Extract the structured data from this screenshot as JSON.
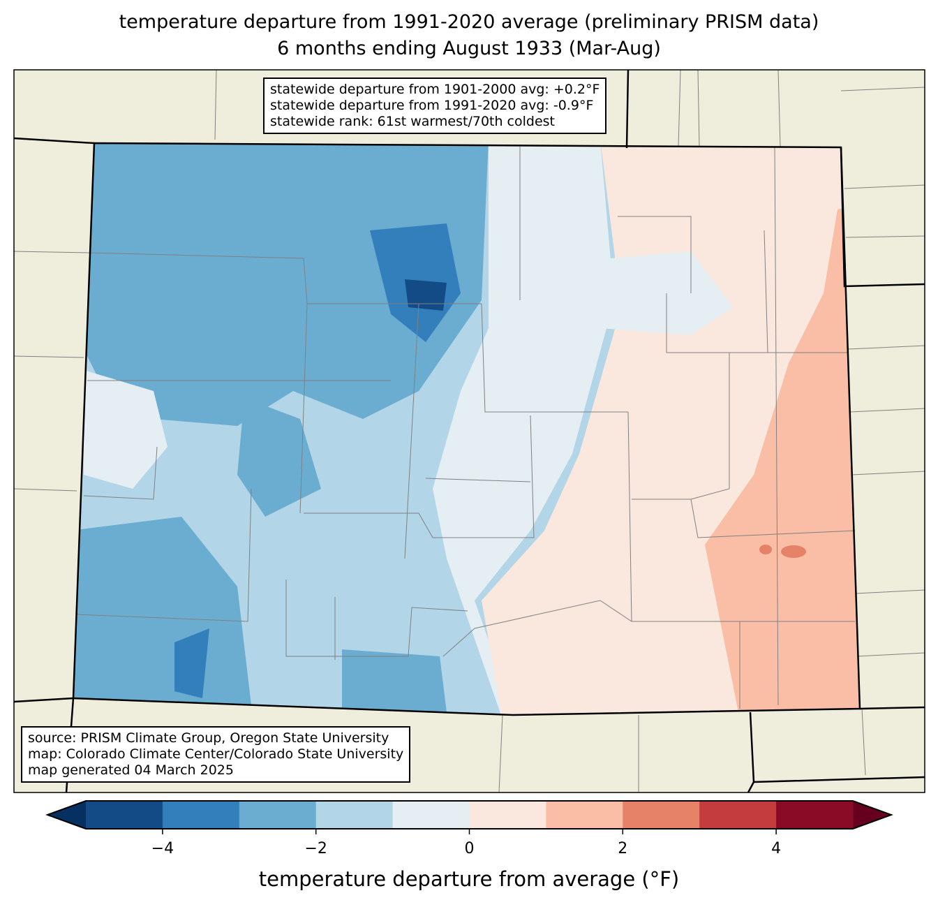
{
  "title": {
    "line1": "temperature departure from 1991-2020 average (preliminary PRISM data)",
    "line2": "6 months ending August 1933 (Mar-Aug)"
  },
  "stats": [
    "statewide departure from 1901-2000 avg: +0.2°F",
    "statewide departure from 1991-2020 avg: -0.9°F",
    "statewide rank: 61st warmest/70th coldest"
  ],
  "credits": [
    "source: PRISM Climate Group, Oregon State University",
    "map: Colorado Climate Center/Colorado State University",
    "map generated 04 March 2025"
  ],
  "colorbar": {
    "label": "temperature departure from average (°F)",
    "min": -5,
    "max": 5,
    "ticks": [
      {
        "value": -4,
        "label": "−4"
      },
      {
        "value": -2,
        "label": "−2"
      },
      {
        "value": 0,
        "label": "0"
      },
      {
        "value": 2,
        "label": "2"
      },
      {
        "value": 4,
        "label": "4"
      }
    ],
    "under_color": "#053061",
    "over_color": "#67001f",
    "colors": [
      "#134b87",
      "#327fbb",
      "#6bacd1",
      "#b2d5e7",
      "#e5eef3",
      "#fae8de",
      "#f9bea5",
      "#e58267",
      "#c43c3c",
      "#8a0b25"
    ]
  },
  "colors": {
    "land": "#efeedc",
    "state_border": "#000000",
    "county": "#808080"
  }
}
